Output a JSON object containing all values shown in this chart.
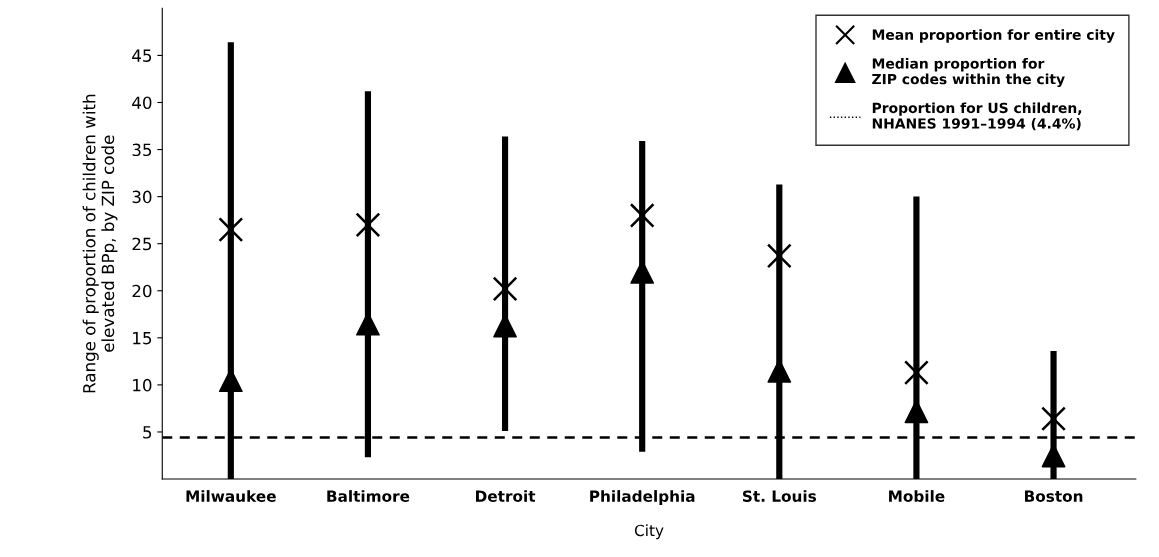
{
  "chart_data": {
    "type": "bar",
    "xlabel": "City",
    "ylabel": "Range of proportion of children with\nelevated BPp, by ZIP code",
    "categories": [
      "Milwaukee",
      "Baltimore",
      "Detroit",
      "Philadelphia",
      "St. Louis",
      "Mobile",
      "Boston"
    ],
    "series": [
      {
        "color": "#000000",
        "base": [
          0,
          2.3,
          5.1,
          2.9,
          0,
          0,
          0
        ],
        "values": [
          46.4,
          38.9,
          31.3,
          33.0,
          31.3,
          30.0,
          13.6
        ]
      },
      {
        "type": "scatter",
        "name": "Mean proportion for entire city",
        "color": "#000000",
        "marker": "cross",
        "values": [
          26.5,
          27.0,
          20.2,
          28.0,
          23.7,
          11.3,
          6.4
        ]
      },
      {
        "type": "scatter",
        "name": "Median proportion for\nZIP codes within the city",
        "color": "#000000",
        "marker": "triangle",
        "values": [
          10.5,
          16.5,
          16.3,
          22.0,
          11.5,
          7.2,
          2.5
        ]
      }
    ],
    "ref_lines": [
      {
        "axis": "y",
        "value": 4.4,
        "label": "Proportion for US children,\nNHANES 1991–1994 (4.4%)",
        "color": "#000000",
        "line_style": "dashed"
      }
    ],
    "ylim": [
      0,
      50
    ],
    "yticks": [
      5,
      10,
      15,
      20,
      25,
      30,
      35,
      40,
      45
    ],
    "grid": false,
    "legend": "top right"
  }
}
